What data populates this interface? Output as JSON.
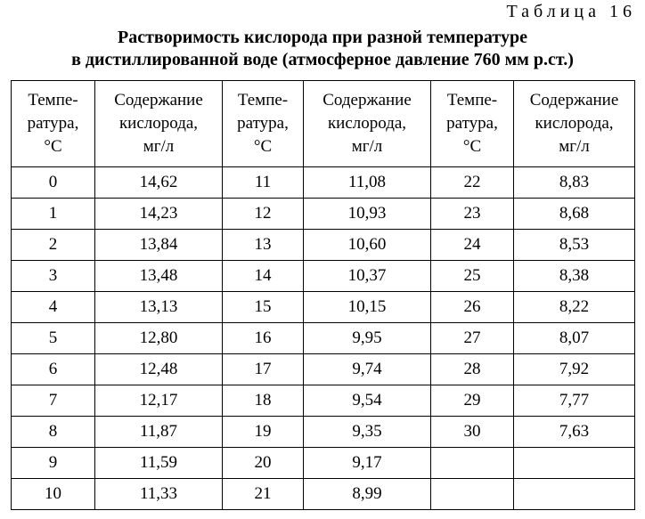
{
  "label": "Таблица 16",
  "title": [
    "Растворимость кислорода при разной температуре",
    "в дистиллированной воде (атмосферное давление 760 мм р.ст.)"
  ],
  "table": {
    "header": [
      [
        "Темпе-",
        "ратура,",
        "°С"
      ],
      [
        "Содержание",
        "кислорода,",
        "мг/л"
      ],
      [
        "Темпе-",
        "ратура,",
        "°С"
      ],
      [
        "Содержание",
        "кислорода,",
        "мг/л"
      ],
      [
        "Темпе-",
        "ратура,",
        "°С"
      ],
      [
        "Содержание",
        "кислорода,",
        "мг/л"
      ]
    ],
    "rows": [
      [
        "0",
        "14,62",
        "11",
        "11,08",
        "22",
        "8,83"
      ],
      [
        "1",
        "14,23",
        "12",
        "10,93",
        "23",
        "8,68"
      ],
      [
        "2",
        "13,84",
        "13",
        "10,60",
        "24",
        "8,53"
      ],
      [
        "3",
        "13,48",
        "14",
        "10,37",
        "25",
        "8,38"
      ],
      [
        "4",
        "13,13",
        "15",
        "10,15",
        "26",
        "8,22"
      ],
      [
        "5",
        "12,80",
        "16",
        "9,95",
        "27",
        "8,07"
      ],
      [
        "6",
        "12,48",
        "17",
        "9,74",
        "28",
        "7,92"
      ],
      [
        "7",
        "12,17",
        "18",
        "9,54",
        "29",
        "7,77"
      ],
      [
        "8",
        "11,87",
        "19",
        "9,35",
        "30",
        "7,63"
      ],
      [
        "9",
        "11,59",
        "20",
        "9,17"
      ],
      [
        "10",
        "11,33",
        "21",
        "8,99"
      ]
    ]
  }
}
